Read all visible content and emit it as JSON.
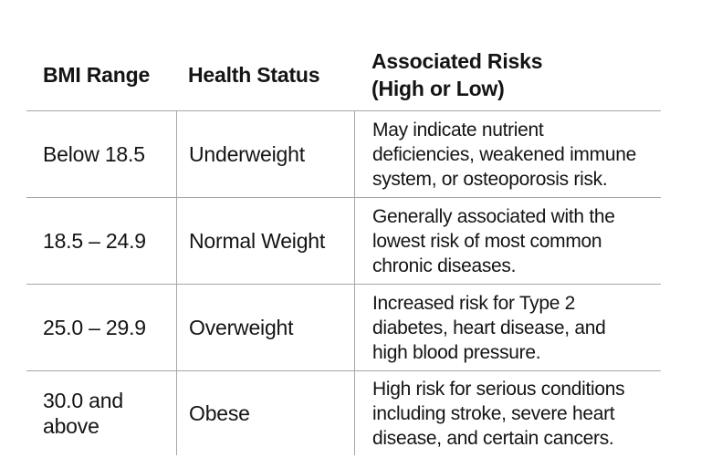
{
  "colors": {
    "background": "#ffffff",
    "text": "#141414",
    "grid_line": "#a6a6a6"
  },
  "header": {
    "bmi_range": "BMI Range",
    "health_status": "Health Status",
    "associated_risks_line1": "Associated Risks",
    "associated_risks_line2": "(High or Low)"
  },
  "chart_data": {
    "type": "table",
    "columns": [
      "BMI Range",
      "Health Status",
      "Associated Risks (High or Low)"
    ],
    "rows": [
      {
        "bmi_range": "Below 18.5",
        "bmi_lines": [
          "Below 18.5"
        ],
        "health_status": "Underweight",
        "risks": "May indicate nutrient deficiencies, weakened immune system, or osteoporosis risk.",
        "risks_lines": [
          "May indicate nutrient",
          "deficiencies, weakened immune",
          "system, or osteoporosis risk."
        ]
      },
      {
        "bmi_range": "18.5 – 24.9",
        "bmi_lines": [
          "18.5 – 24.9"
        ],
        "health_status": "Normal Weight",
        "risks": "Generally associated with the lowest risk of most common chronic diseases.",
        "risks_lines": [
          "Generally associated with the",
          "lowest risk of most common",
          "chronic diseases."
        ]
      },
      {
        "bmi_range": "25.0 – 29.9",
        "bmi_lines": [
          "25.0 – 29.9"
        ],
        "health_status": "Overweight",
        "risks": "Increased risk for Type 2 diabetes, heart disease, and high blood pressure.",
        "risks_lines": [
          "Increased risk for Type 2",
          "diabetes, heart disease, and",
          "high blood pressure."
        ]
      },
      {
        "bmi_range": "30.0 and above",
        "bmi_lines": [
          "30.0 and",
          "above"
        ],
        "health_status": "Obese",
        "risks": "High risk for serious conditions including stroke, severe heart disease, and certain cancers.",
        "risks_lines": [
          "High risk for serious conditions",
          "including stroke, severe heart",
          "disease, and certain cancers."
        ]
      }
    ]
  }
}
